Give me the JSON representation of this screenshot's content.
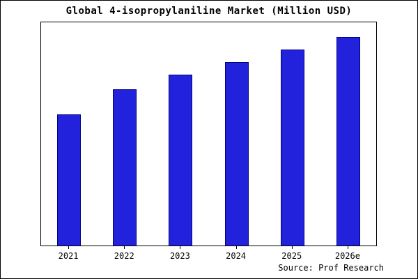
{
  "title": "Global 4-isopropylaniline Market (Million USD)",
  "source": "Source: Prof Research",
  "colors": {
    "bar_fill": "#2222DD",
    "bar_edge": "#000080",
    "axis": "#000000",
    "background": "#FFFFFF"
  },
  "chart_data": {
    "type": "bar",
    "title": "Global 4-isopropylaniline Market (Million USD)",
    "categories": [
      "2021",
      "2022",
      "2023",
      "2024",
      "2025",
      "2026e"
    ],
    "values": [
      63,
      75,
      82,
      88,
      94,
      100
    ],
    "xlabel": "",
    "ylabel": "",
    "ylim": [
      0,
      107
    ],
    "grid": false,
    "legend": false
  }
}
